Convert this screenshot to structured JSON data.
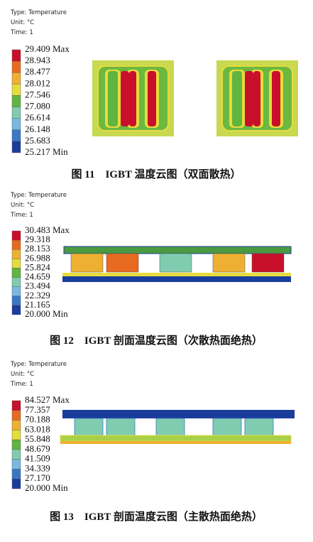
{
  "figures": [
    {
      "header": {
        "type": "Type: Temperature",
        "unit": "Unit: °C",
        "time": "Time: 1"
      },
      "legend": [
        "29.409 Max",
        "28.943",
        "28.477",
        "28.012",
        "27.546",
        "27.080",
        "26.614",
        "26.148",
        "25.683",
        "25.217 Min"
      ],
      "caption": "图 11　IGBT 温度云图（双面散热）"
    },
    {
      "header": {
        "type": "Type: Temperature",
        "unit": "Unit: °C",
        "time": "Time: 1"
      },
      "legend": [
        "30.483 Max",
        "29.318",
        "28.153",
        "26.988",
        "25.824",
        "24.659",
        "23.494",
        "22.329",
        "21.165",
        "20.000 Min"
      ],
      "caption": "图 12　IGBT 剖面温度云图（次散热面绝热）"
    },
    {
      "header": {
        "type": "Type: Temperature",
        "unit": "Unit: °C",
        "time": "Time: 1"
      },
      "legend": [
        "84.527 Max",
        "77.357",
        "70.188",
        "63.018",
        "55.848",
        "48.679",
        "41.509",
        "34.339",
        "27.170",
        "20.000 Min"
      ],
      "caption": "图 13　IGBT 剖面温度云图（主散热面绝热）"
    }
  ]
}
